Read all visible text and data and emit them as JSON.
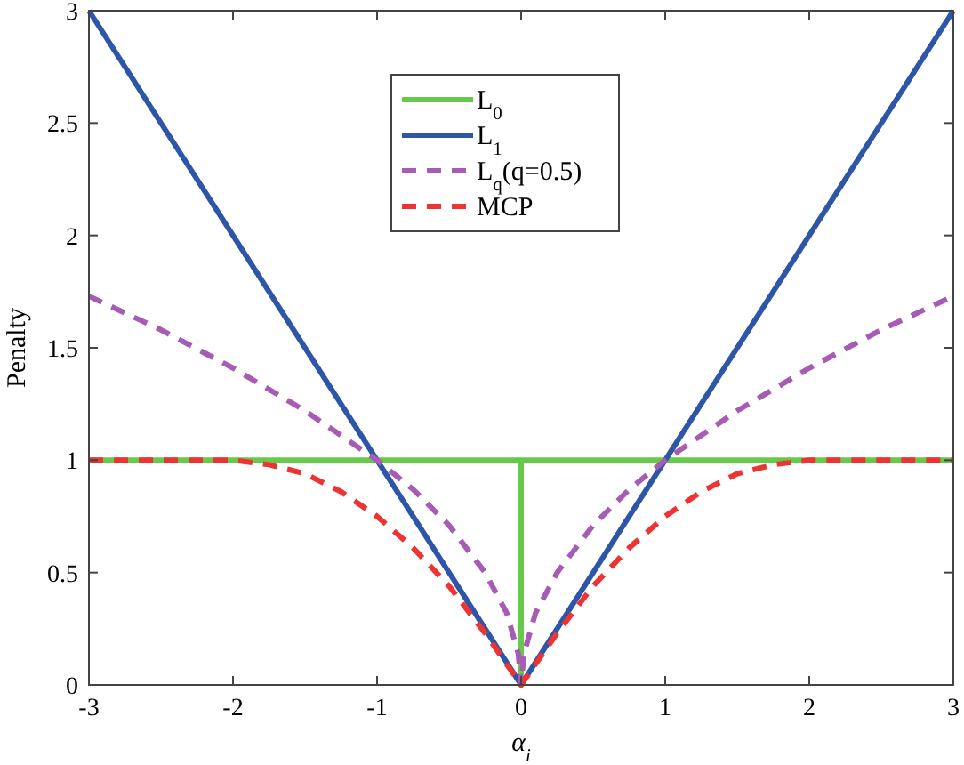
{
  "chart_data": {
    "type": "line",
    "xlabel": "α$_{i}$",
    "ylabel": "Penalty",
    "xlim": [
      -3,
      3
    ],
    "ylim": [
      0,
      3
    ],
    "xticks": [
      -3,
      -2,
      -1,
      0,
      1,
      2,
      3
    ],
    "yticks": [
      0,
      0.5,
      1,
      1.5,
      2,
      2.5,
      3
    ],
    "grid": false,
    "legend": "top",
    "marker": "none",
    "series": [
      {
        "name": "L$_{0}$",
        "color": "#66c94a",
        "line_style": "solid",
        "x": [
          -3,
          0,
          0,
          0,
          3
        ],
        "values": [
          1,
          1,
          0,
          1,
          1
        ]
      },
      {
        "name": "L$_{1}$",
        "color": "#2e56a8",
        "line_style": "solid",
        "x": [
          -3,
          0,
          3
        ],
        "values": [
          3,
          0,
          3
        ]
      },
      {
        "name": "L$_{q}$(q=0.5)",
        "color": "#a65bb4",
        "line_style": "dashed",
        "x": [
          -3,
          -2.5,
          -2,
          -1.5,
          -1,
          -0.75,
          -0.5,
          -0.25,
          -0.1,
          -0.02,
          0,
          0.02,
          0.1,
          0.25,
          0.5,
          0.75,
          1,
          1.5,
          2,
          2.5,
          3
        ],
        "values": [
          1.73,
          1.58,
          1.41,
          1.22,
          1,
          0.87,
          0.71,
          0.5,
          0.32,
          0.14,
          0,
          0.14,
          0.32,
          0.5,
          0.71,
          0.87,
          1,
          1.22,
          1.41,
          1.58,
          1.73
        ]
      },
      {
        "name": "MCP",
        "color": "#ee3333",
        "line_style": "dashed",
        "x": [
          -3,
          -2,
          -1.75,
          -1.5,
          -1.25,
          -1,
          -0.75,
          -0.5,
          -0.25,
          0,
          0.25,
          0.5,
          0.75,
          1,
          1.25,
          1.5,
          1.75,
          2,
          3
        ],
        "values": [
          1,
          1,
          0.98,
          0.94,
          0.86,
          0.75,
          0.61,
          0.44,
          0.23,
          0,
          0.23,
          0.44,
          0.61,
          0.75,
          0.86,
          0.94,
          0.98,
          1,
          1
        ]
      }
    ]
  }
}
